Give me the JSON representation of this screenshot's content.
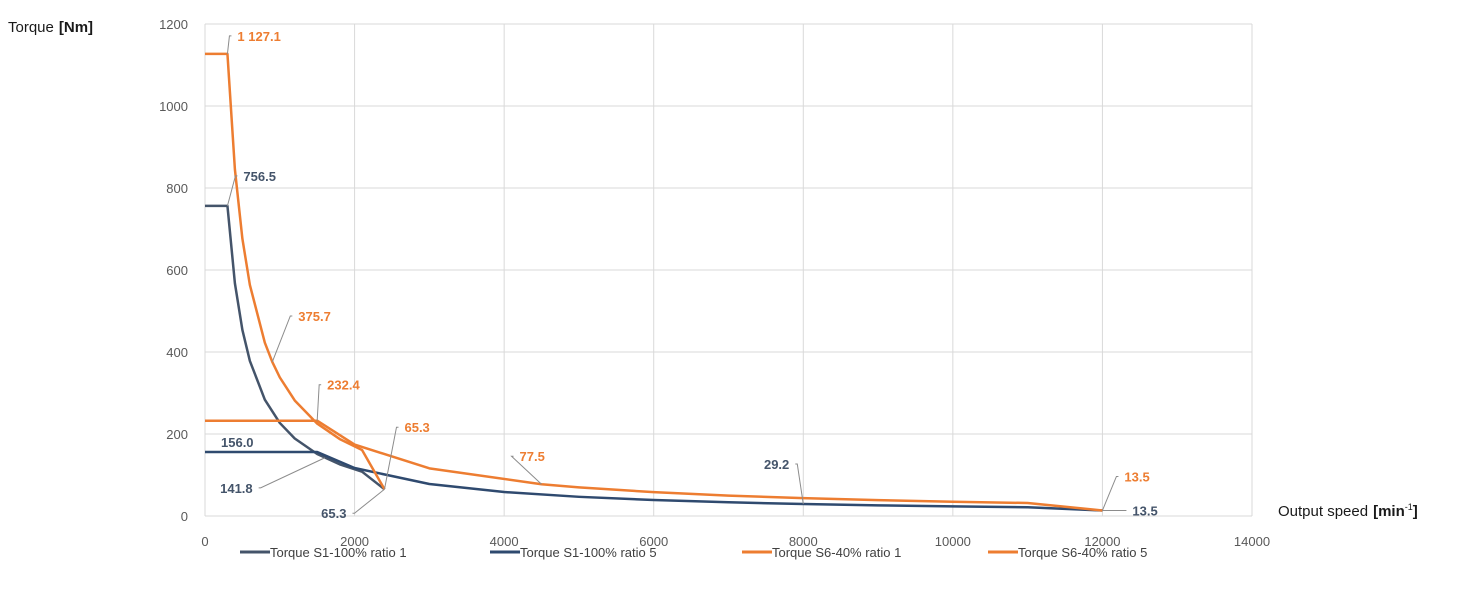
{
  "chart_data": {
    "type": "line",
    "ylabel": "Torque",
    "ylabel_unit": "[Nm]",
    "xlabel": "Output speed",
    "xlabel_unit_prefix": "[min",
    "xlabel_unit_sup": "-1",
    "xlabel_unit_suffix": "]",
    "xlim": [
      0,
      14000
    ],
    "ylim": [
      0,
      1200
    ],
    "x_ticks": [
      "0",
      "2000",
      "4000",
      "6000",
      "8000",
      "10000",
      "12000",
      "14000"
    ],
    "y_ticks": [
      "0",
      "200",
      "400",
      "600",
      "800",
      "1000",
      "1200"
    ],
    "grid": true,
    "legend_position": "bottom",
    "series": [
      {
        "name": "Torque S1-100% ratio 1",
        "color": "#44546A",
        "points": [
          [
            0,
            756.5
          ],
          [
            300,
            756.5
          ],
          [
            400,
            567.4
          ],
          [
            500,
            453.9
          ],
          [
            600,
            378.3
          ],
          [
            800,
            283.7
          ],
          [
            1000,
            227.0
          ],
          [
            1200,
            189.1
          ],
          [
            1500,
            151.3
          ],
          [
            1800,
            126.1
          ],
          [
            2100,
            108.1
          ],
          [
            2400,
            65.3
          ]
        ]
      },
      {
        "name": "Torque S1-100% ratio 5",
        "color": "#2F4A6F",
        "points": [
          [
            0,
            156.0
          ],
          [
            1500,
            156.0
          ],
          [
            2000,
            117.0
          ],
          [
            3000,
            78.0
          ],
          [
            4000,
            58.5
          ],
          [
            5000,
            46.8
          ],
          [
            6000,
            39.0
          ],
          [
            7000,
            33.4
          ],
          [
            8000,
            29.2
          ],
          [
            9000,
            26.0
          ],
          [
            10000,
            23.4
          ],
          [
            11000,
            21.3
          ],
          [
            12000,
            13.5
          ]
        ]
      },
      {
        "name": "Torque S6-40% ratio 1",
        "color": "#ED7D31",
        "points": [
          [
            0,
            1127.1
          ],
          [
            300,
            1127.1
          ],
          [
            400,
            845.3
          ],
          [
            500,
            676.3
          ],
          [
            600,
            563.6
          ],
          [
            800,
            422.7
          ],
          [
            900,
            375.7
          ],
          [
            1000,
            338.1
          ],
          [
            1200,
            281.8
          ],
          [
            1500,
            225.4
          ],
          [
            1800,
            187.9
          ],
          [
            2100,
            161.0
          ],
          [
            2400,
            65.3
          ]
        ]
      },
      {
        "name": "Torque S6-40% ratio 5",
        "color": "#ED7D31",
        "points": [
          [
            0,
            232.4
          ],
          [
            1500,
            232.4
          ],
          [
            2000,
            174.3
          ],
          [
            3000,
            116.2
          ],
          [
            4500,
            77.5
          ],
          [
            5000,
            69.7
          ],
          [
            6000,
            58.1
          ],
          [
            7000,
            49.8
          ],
          [
            8000,
            43.6
          ],
          [
            9000,
            38.7
          ],
          [
            10000,
            34.9
          ],
          [
            11000,
            31.7
          ],
          [
            12000,
            13.5
          ]
        ]
      }
    ],
    "annotations": [
      {
        "text": "1 127.1",
        "color": "#ED7D31",
        "x": 300,
        "y": 1127.1
      },
      {
        "text": "756.5",
        "color": "#44546A",
        "x": 300,
        "y": 756.5
      },
      {
        "text": "375.7",
        "color": "#ED7D31",
        "x": 900,
        "y": 375.7
      },
      {
        "text": "232.4",
        "color": "#ED7D31",
        "x": 1500,
        "y": 232.4
      },
      {
        "text": "156.0",
        "color": "#44546A",
        "x": 0,
        "y": 156.0
      },
      {
        "text": "141.8",
        "color": "#44546A",
        "x": 1600,
        "y": 141.8
      },
      {
        "text": "65.3",
        "color": "#ED7D31",
        "x": 2400,
        "y": 65.3
      },
      {
        "text": "65.3",
        "color": "#44546A",
        "x": 2400,
        "y": 65.3
      },
      {
        "text": "77.5",
        "color": "#ED7D31",
        "x": 4500,
        "y": 77.5
      },
      {
        "text": "29.2",
        "color": "#44546A",
        "x": 8000,
        "y": 29.2
      },
      {
        "text": "13.5",
        "color": "#ED7D31",
        "x": 12000,
        "y": 13.5
      },
      {
        "text": "13.5",
        "color": "#44546A",
        "x": 12000,
        "y": 13.5
      }
    ]
  }
}
